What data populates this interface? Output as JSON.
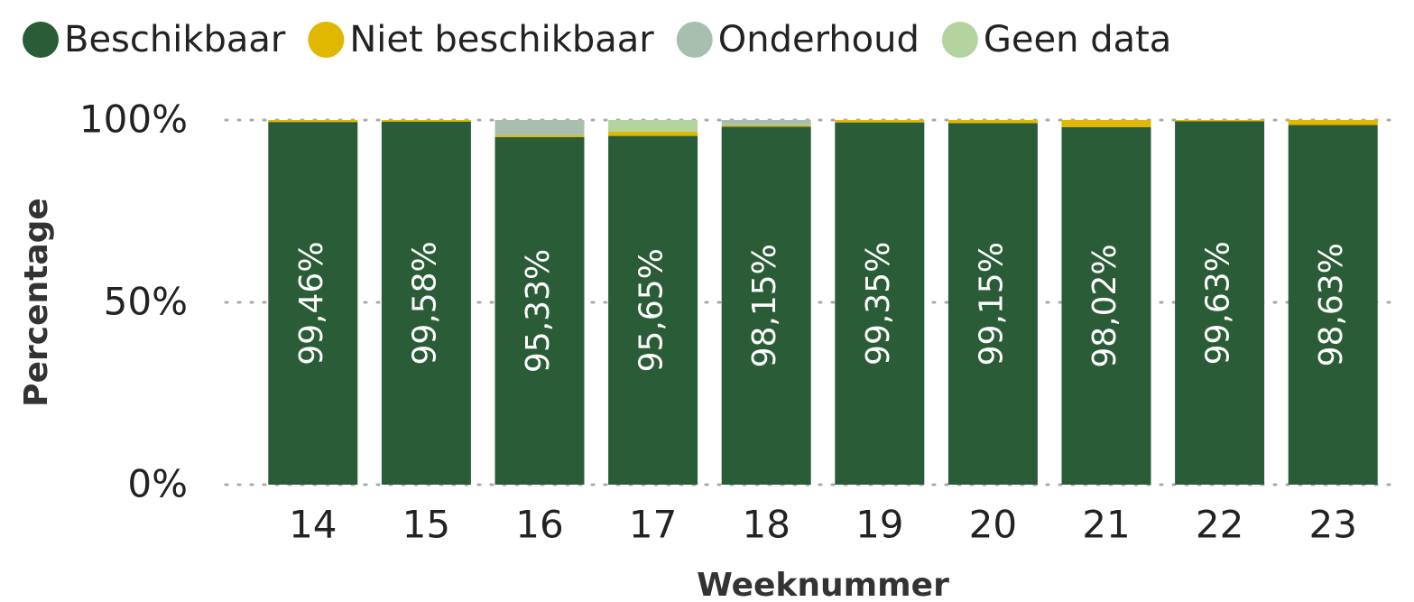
{
  "chart_data": {
    "type": "stacked_bar",
    "x_label": "Weeknummer",
    "y_label": "Percentage",
    "categories": [
      "14",
      "15",
      "16",
      "17",
      "18",
      "19",
      "20",
      "21",
      "22",
      "23"
    ],
    "series": [
      {
        "name": "Beschikbaar",
        "color": "#2a5c38",
        "values": [
          99.46,
          99.58,
          95.33,
          95.65,
          98.15,
          99.35,
          99.15,
          98.02,
          99.63,
          98.63
        ],
        "value_labels": [
          "99,46%",
          "99,58%",
          "95,33%",
          "95,65%",
          "98,15%",
          "99,35%",
          "99,15%",
          "98,02%",
          "99,63%",
          "98,63%"
        ]
      },
      {
        "name": "Niet beschikbaar",
        "color": "#e0b800",
        "values": [
          0.54,
          0.42,
          0.5,
          1.2,
          0.4,
          0.65,
          0.85,
          1.98,
          0.37,
          1.37
        ]
      },
      {
        "name": "Onderhoud",
        "color": "#a8bfb0",
        "values": [
          0,
          0,
          4.17,
          0,
          1.45,
          0,
          0,
          0,
          0,
          0
        ]
      },
      {
        "name": "Geen data",
        "color": "#b3d39f",
        "values": [
          0,
          0,
          0,
          3.15,
          0,
          0,
          0,
          0,
          0,
          0
        ]
      }
    ],
    "ylim": [
      0,
      100
    ],
    "yticks": [
      {
        "value": 0,
        "label": "0%"
      },
      {
        "value": 50,
        "label": "50%"
      },
      {
        "value": 100,
        "label": "100%"
      }
    ],
    "grid": true,
    "legend": "top"
  }
}
